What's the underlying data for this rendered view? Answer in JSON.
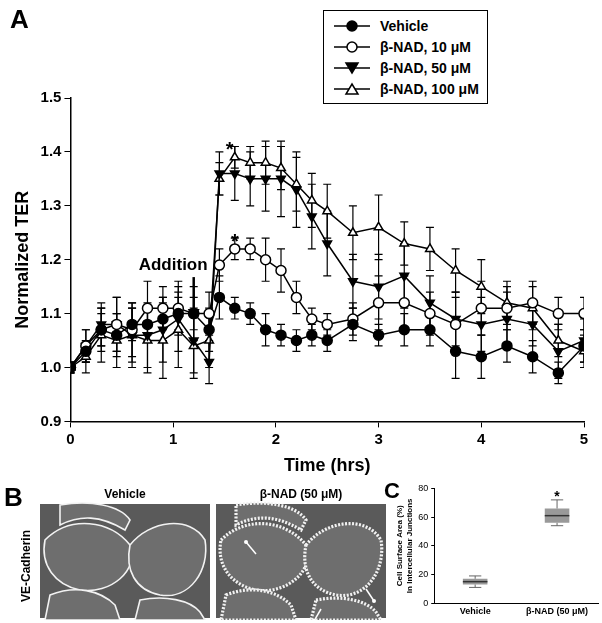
{
  "chart_data": [
    {
      "panel": "A",
      "type": "line",
      "x_label": "Time (hrs)",
      "y_label": "Normalized TER",
      "xlim": [
        0,
        5
      ],
      "xticks": [
        0,
        1,
        2,
        3,
        4,
        5
      ],
      "ylim": [
        0.9,
        1.5
      ],
      "yticks": [
        0.9,
        {
          "value": 1,
          "label": "1.0"
        },
        1.1,
        1.2,
        1.3,
        1.4,
        1.5
      ],
      "grid": false,
      "legend": "upper right",
      "x": [
        0,
        0.15,
        0.3,
        0.45,
        0.6,
        0.75,
        0.9,
        1.05,
        1.2,
        1.35,
        1.45,
        1.6,
        1.75,
        1.9,
        2.05,
        2.2,
        2.35,
        2.5,
        2.75,
        3.0,
        3.25,
        3.5,
        3.75,
        4.0,
        4.25,
        4.5,
        4.75,
        5.0
      ],
      "series": [
        {
          "name": "Vehicle",
          "color": "#000000",
          "marker": "circle",
          "line_style": "solid",
          "values": [
            1.0,
            1.03,
            1.07,
            1.06,
            1.08,
            1.08,
            1.09,
            1.1,
            1.1,
            1.07,
            1.13,
            1.11,
            1.1,
            1.07,
            1.06,
            1.05,
            1.06,
            1.05,
            1.08,
            1.06,
            1.07,
            1.07,
            1.03,
            1.02,
            1.04,
            1.02,
            0.99,
            1.04
          ],
          "errors": [
            0.01,
            0.02,
            0.03,
            0.04,
            0.03,
            0.03,
            0.04,
            0.03,
            0.03,
            0.04,
            0.04,
            0.02,
            0.02,
            0.03,
            0.02,
            0.02,
            0.02,
            0.02,
            0.03,
            0.02,
            0.03,
            0.03,
            0.05,
            0.04,
            0.03,
            0.03,
            0.02,
            0.03
          ]
        },
        {
          "name": "β-NAD, 10 μM",
          "color": "#000000",
          "marker": "open_circle",
          "line_style": "solid",
          "values": [
            1.0,
            1.04,
            1.07,
            1.08,
            1.07,
            1.11,
            1.11,
            1.11,
            1.1,
            1.1,
            1.19,
            1.22,
            1.22,
            1.2,
            1.18,
            1.13,
            1.09,
            1.08,
            1.09,
            1.12,
            1.12,
            1.1,
            1.08,
            1.11,
            1.11,
            1.12,
            1.1,
            1.1
          ],
          "errors": [
            0.01,
            0.03,
            0.04,
            0.05,
            0.05,
            0.05,
            0.04,
            0.05,
            0.05,
            0.04,
            0.03,
            0.02,
            0.02,
            0.04,
            0.04,
            0.03,
            0.02,
            0.02,
            0.03,
            0.05,
            0.05,
            0.04,
            0.05,
            0.05,
            0.04,
            0.04,
            0.03,
            0.03
          ]
        },
        {
          "name": "β-NAD, 50 μM",
          "color": "#000000",
          "marker": "triangle_down",
          "line_style": "solid",
          "values": [
            1.0,
            1.04,
            1.08,
            1.08,
            1.06,
            1.06,
            1.07,
            1.09,
            1.05,
            1.01,
            1.36,
            1.36,
            1.35,
            1.35,
            1.35,
            1.33,
            1.28,
            1.23,
            1.16,
            1.15,
            1.17,
            1.12,
            1.09,
            1.08,
            1.09,
            1.08,
            1.03,
            1.05
          ],
          "errors": [
            0.01,
            0.03,
            0.04,
            0.05,
            0.05,
            0.06,
            0.06,
            0.06,
            0.06,
            0.04,
            0.04,
            0.05,
            0.05,
            0.06,
            0.07,
            0.07,
            0.06,
            0.06,
            0.05,
            0.06,
            0.06,
            0.05,
            0.05,
            0.05,
            0.05,
            0.04,
            0.05,
            0.04
          ]
        },
        {
          "name": "β-NAD, 100 μM",
          "color": "#000000",
          "marker": "open_triangle",
          "line_style": "solid",
          "values": [
            1.0,
            1.02,
            1.06,
            1.05,
            1.06,
            1.05,
            1.05,
            1.07,
            1.04,
            1.05,
            1.35,
            1.39,
            1.38,
            1.38,
            1.37,
            1.34,
            1.31,
            1.29,
            1.25,
            1.26,
            1.23,
            1.22,
            1.18,
            1.15,
            1.12,
            1.11,
            1.05,
            1.03
          ],
          "errors": [
            0.01,
            0.03,
            0.05,
            0.05,
            0.06,
            0.06,
            0.07,
            0.07,
            0.06,
            0.05,
            0.03,
            0.02,
            0.03,
            0.04,
            0.04,
            0.05,
            0.05,
            0.05,
            0.05,
            0.06,
            0.04,
            0.04,
            0.04,
            0.05,
            0.04,
            0.04,
            0.03,
            0.03
          ]
        }
      ],
      "annotations": [
        {
          "text": "Addition",
          "x": 1.0,
          "y": 1.19,
          "arrow_x": 1.2,
          "arrow_y": 1.09
        },
        {
          "text": "*",
          "x": 1.55,
          "y": 1.41
        },
        {
          "text": "*",
          "x": 1.6,
          "y": 1.24
        }
      ]
    },
    {
      "panel": "B",
      "type": "image",
      "row_label": "VE-Cadherin",
      "image_titles": [
        "Vehicle",
        "β-NAD (50 μM)"
      ]
    },
    {
      "panel": "C",
      "type": "box",
      "y_label": "Cell Surface Area (%)\nIn Intercellular Junctions",
      "categories": [
        "Vehicle",
        "β-NAD (50 μM)"
      ],
      "values": [
        {
          "min": 11,
          "q1": 13,
          "median": 15,
          "q3": 17,
          "max": 19
        },
        {
          "min": 54,
          "q1": 56,
          "median": 61,
          "q3": 66,
          "max": 72
        }
      ],
      "color": "#999999",
      "ylim": [
        0,
        80
      ],
      "yticks": [
        0,
        20,
        40,
        60,
        80
      ],
      "grid": false,
      "annotations": [
        {
          "text": "*",
          "category": "β-NAD (50 μM)",
          "y": 76
        }
      ]
    }
  ]
}
